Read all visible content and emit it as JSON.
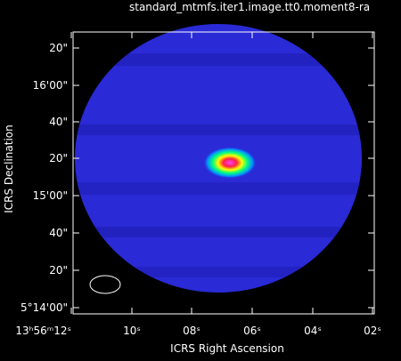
{
  "title": "standard_mtmfs.iter1.image.tt0.moment8-ra",
  "x_axis": {
    "label": "ICRS Right Ascension",
    "ticks": [
      "13ʰ56ᵐ12ˢ",
      "10ˢ",
      "08ˢ",
      "06ˢ",
      "04ˢ",
      "02ˢ"
    ]
  },
  "y_axis": {
    "label": "ICRS Declination",
    "ticks": [
      "20\"",
      "16'00\"",
      "40\"",
      "20\"",
      "15'00\"",
      "40\"",
      "20\"",
      "5°14'00\""
    ]
  }
}
